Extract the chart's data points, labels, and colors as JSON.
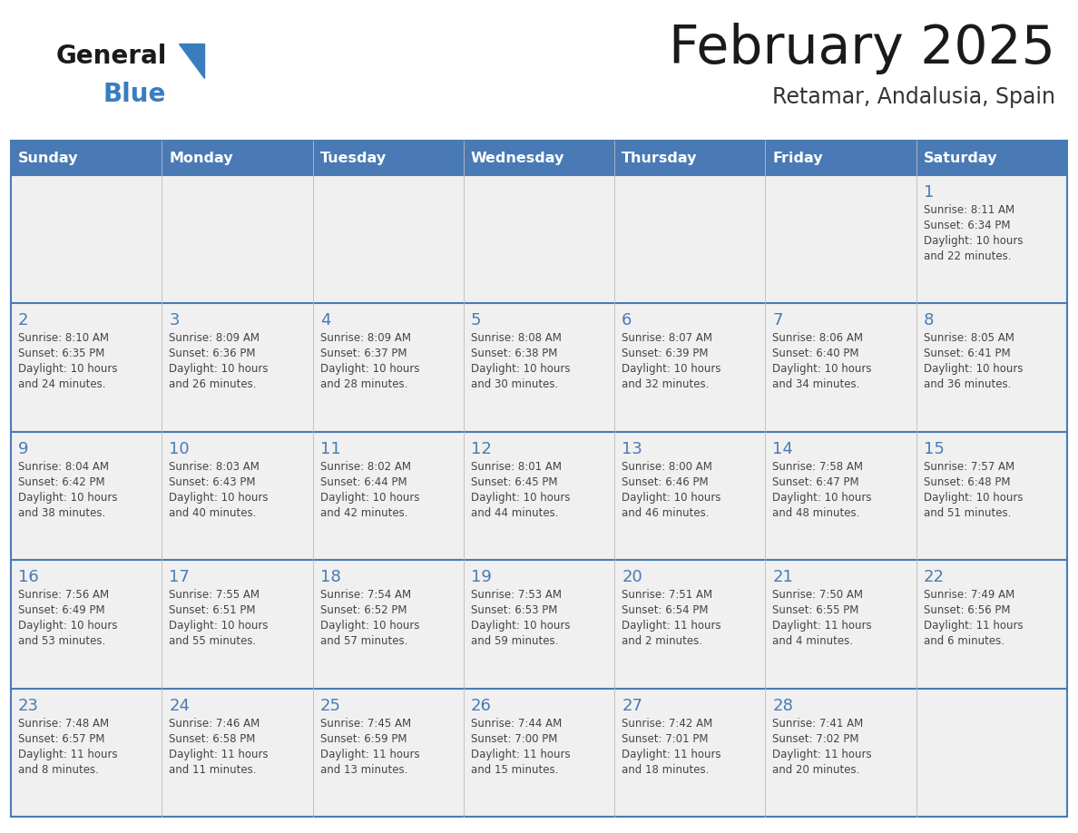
{
  "title": "February 2025",
  "subtitle": "Retamar, Andalusia, Spain",
  "days_of_week": [
    "Sunday",
    "Monday",
    "Tuesday",
    "Wednesday",
    "Thursday",
    "Friday",
    "Saturday"
  ],
  "header_bg": "#4a7ab5",
  "header_text": "#ffffff",
  "row_bg": "#f0f0f0",
  "cell_border_color": "#4a7ab5",
  "cell_inner_border": "#c0c0c0",
  "day_num_color": "#4a7ab5",
  "info_text_color": "#444444",
  "title_color": "#1a1a1a",
  "subtitle_color": "#333333",
  "logo_general_color": "#1a1a1a",
  "logo_blue_color": "#3a7dbf",
  "weeks": [
    {
      "days": [
        {
          "day": null,
          "sunrise": null,
          "sunset": null,
          "daylight": null
        },
        {
          "day": null,
          "sunrise": null,
          "sunset": null,
          "daylight": null
        },
        {
          "day": null,
          "sunrise": null,
          "sunset": null,
          "daylight": null
        },
        {
          "day": null,
          "sunrise": null,
          "sunset": null,
          "daylight": null
        },
        {
          "day": null,
          "sunrise": null,
          "sunset": null,
          "daylight": null
        },
        {
          "day": null,
          "sunrise": null,
          "sunset": null,
          "daylight": null
        },
        {
          "day": 1,
          "sunrise": "8:11 AM",
          "sunset": "6:34 PM",
          "daylight": "10 hours and 22 minutes."
        }
      ]
    },
    {
      "days": [
        {
          "day": 2,
          "sunrise": "8:10 AM",
          "sunset": "6:35 PM",
          "daylight": "10 hours and 24 minutes."
        },
        {
          "day": 3,
          "sunrise": "8:09 AM",
          "sunset": "6:36 PM",
          "daylight": "10 hours and 26 minutes."
        },
        {
          "day": 4,
          "sunrise": "8:09 AM",
          "sunset": "6:37 PM",
          "daylight": "10 hours and 28 minutes."
        },
        {
          "day": 5,
          "sunrise": "8:08 AM",
          "sunset": "6:38 PM",
          "daylight": "10 hours and 30 minutes."
        },
        {
          "day": 6,
          "sunrise": "8:07 AM",
          "sunset": "6:39 PM",
          "daylight": "10 hours and 32 minutes."
        },
        {
          "day": 7,
          "sunrise": "8:06 AM",
          "sunset": "6:40 PM",
          "daylight": "10 hours and 34 minutes."
        },
        {
          "day": 8,
          "sunrise": "8:05 AM",
          "sunset": "6:41 PM",
          "daylight": "10 hours and 36 minutes."
        }
      ]
    },
    {
      "days": [
        {
          "day": 9,
          "sunrise": "8:04 AM",
          "sunset": "6:42 PM",
          "daylight": "10 hours and 38 minutes."
        },
        {
          "day": 10,
          "sunrise": "8:03 AM",
          "sunset": "6:43 PM",
          "daylight": "10 hours and 40 minutes."
        },
        {
          "day": 11,
          "sunrise": "8:02 AM",
          "sunset": "6:44 PM",
          "daylight": "10 hours and 42 minutes."
        },
        {
          "day": 12,
          "sunrise": "8:01 AM",
          "sunset": "6:45 PM",
          "daylight": "10 hours and 44 minutes."
        },
        {
          "day": 13,
          "sunrise": "8:00 AM",
          "sunset": "6:46 PM",
          "daylight": "10 hours and 46 minutes."
        },
        {
          "day": 14,
          "sunrise": "7:58 AM",
          "sunset": "6:47 PM",
          "daylight": "10 hours and 48 minutes."
        },
        {
          "day": 15,
          "sunrise": "7:57 AM",
          "sunset": "6:48 PM",
          "daylight": "10 hours and 51 minutes."
        }
      ]
    },
    {
      "days": [
        {
          "day": 16,
          "sunrise": "7:56 AM",
          "sunset": "6:49 PM",
          "daylight": "10 hours and 53 minutes."
        },
        {
          "day": 17,
          "sunrise": "7:55 AM",
          "sunset": "6:51 PM",
          "daylight": "10 hours and 55 minutes."
        },
        {
          "day": 18,
          "sunrise": "7:54 AM",
          "sunset": "6:52 PM",
          "daylight": "10 hours and 57 minutes."
        },
        {
          "day": 19,
          "sunrise": "7:53 AM",
          "sunset": "6:53 PM",
          "daylight": "10 hours and 59 minutes."
        },
        {
          "day": 20,
          "sunrise": "7:51 AM",
          "sunset": "6:54 PM",
          "daylight": "11 hours and 2 minutes."
        },
        {
          "day": 21,
          "sunrise": "7:50 AM",
          "sunset": "6:55 PM",
          "daylight": "11 hours and 4 minutes."
        },
        {
          "day": 22,
          "sunrise": "7:49 AM",
          "sunset": "6:56 PM",
          "daylight": "11 hours and 6 minutes."
        }
      ]
    },
    {
      "days": [
        {
          "day": 23,
          "sunrise": "7:48 AM",
          "sunset": "6:57 PM",
          "daylight": "11 hours and 8 minutes."
        },
        {
          "day": 24,
          "sunrise": "7:46 AM",
          "sunset": "6:58 PM",
          "daylight": "11 hours and 11 minutes."
        },
        {
          "day": 25,
          "sunrise": "7:45 AM",
          "sunset": "6:59 PM",
          "daylight": "11 hours and 13 minutes."
        },
        {
          "day": 26,
          "sunrise": "7:44 AM",
          "sunset": "7:00 PM",
          "daylight": "11 hours and 15 minutes."
        },
        {
          "day": 27,
          "sunrise": "7:42 AM",
          "sunset": "7:01 PM",
          "daylight": "11 hours and 18 minutes."
        },
        {
          "day": 28,
          "sunrise": "7:41 AM",
          "sunset": "7:02 PM",
          "daylight": "11 hours and 20 minutes."
        },
        {
          "day": null,
          "sunrise": null,
          "sunset": null,
          "daylight": null
        }
      ]
    }
  ]
}
